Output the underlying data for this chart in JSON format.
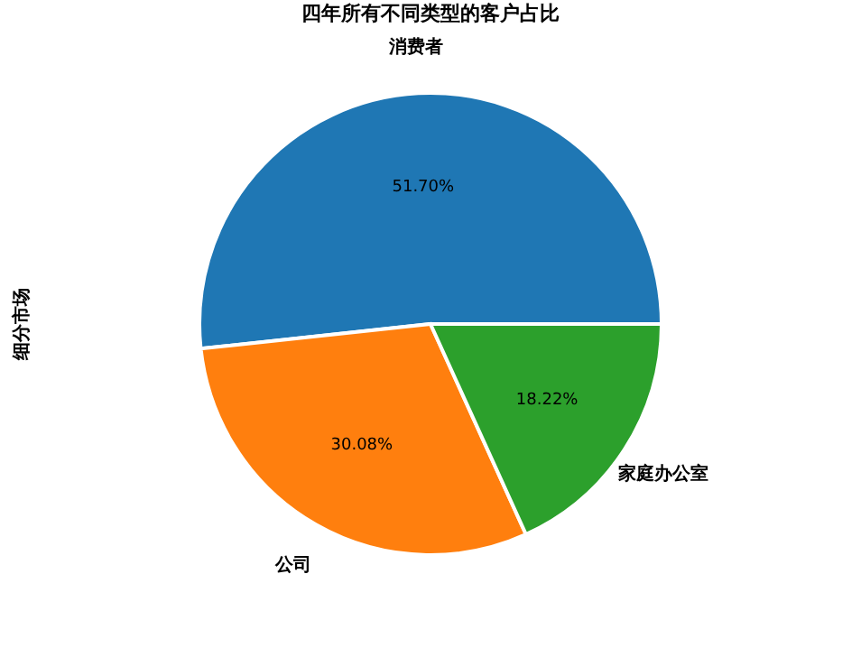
{
  "chart_data": {
    "type": "pie",
    "title": "四年所有不同类型的客户占比",
    "ylabel": "细分市场",
    "categories": [
      "消费者",
      "公司",
      "家庭办公室"
    ],
    "values": [
      51.7,
      30.08,
      18.22
    ],
    "value_labels": [
      "51.70%",
      "30.08%",
      "18.22%"
    ],
    "colors": [
      "#1f77b4",
      "#ff7f0e",
      "#2ca02c"
    ]
  }
}
